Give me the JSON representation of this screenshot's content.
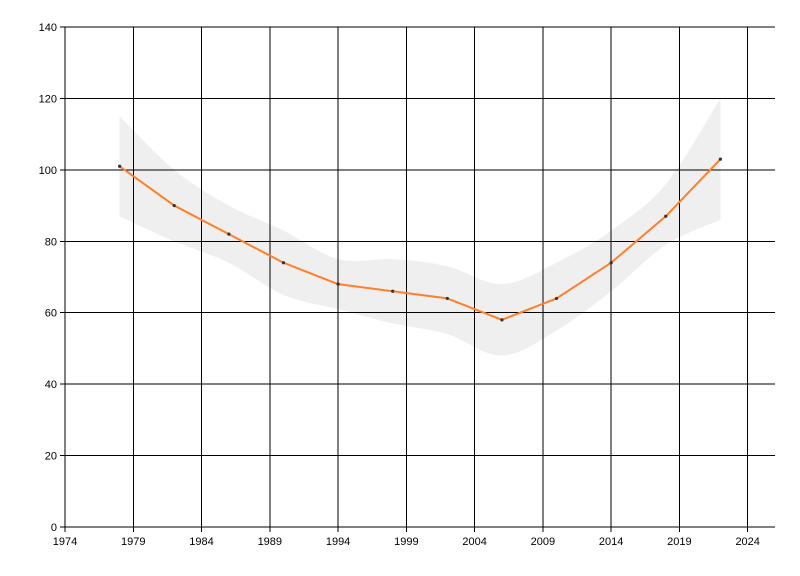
{
  "colors": {
    "background": "#ffffff",
    "grid": "#000000",
    "line": "#ff7f2a",
    "band": "#efefef",
    "point": "#333333"
  },
  "chart_data": {
    "type": "line",
    "title": "",
    "xlabel": "",
    "ylabel": "",
    "xlim": [
      1974,
      2026
    ],
    "ylim": [
      0,
      140
    ],
    "x_ticks": [
      1974,
      1979,
      1984,
      1989,
      1994,
      1999,
      2004,
      2009,
      2014,
      2019,
      2024
    ],
    "y_ticks": [
      0,
      20,
      40,
      60,
      80,
      100,
      120,
      140
    ],
    "grid": true,
    "legend": "none",
    "series": [
      {
        "x": [
          1978,
          1982,
          1986,
          1990,
          1994,
          1998,
          2002,
          2006,
          2010,
          2014,
          2018,
          2022
        ],
        "y": [
          101,
          90,
          82,
          74,
          68,
          66,
          64,
          58,
          64,
          74,
          87,
          103
        ]
      }
    ],
    "confidence_band": {
      "x": [
        1978,
        1982,
        1986,
        1990,
        1994,
        1998,
        2002,
        2006,
        2010,
        2014,
        2018,
        2022
      ],
      "upper": [
        115,
        100,
        90,
        83,
        75,
        75,
        73,
        68,
        74,
        83,
        96,
        120
      ],
      "lower": [
        87,
        80,
        74,
        65,
        61,
        57,
        54,
        48,
        55,
        66,
        79,
        86
      ]
    }
  }
}
